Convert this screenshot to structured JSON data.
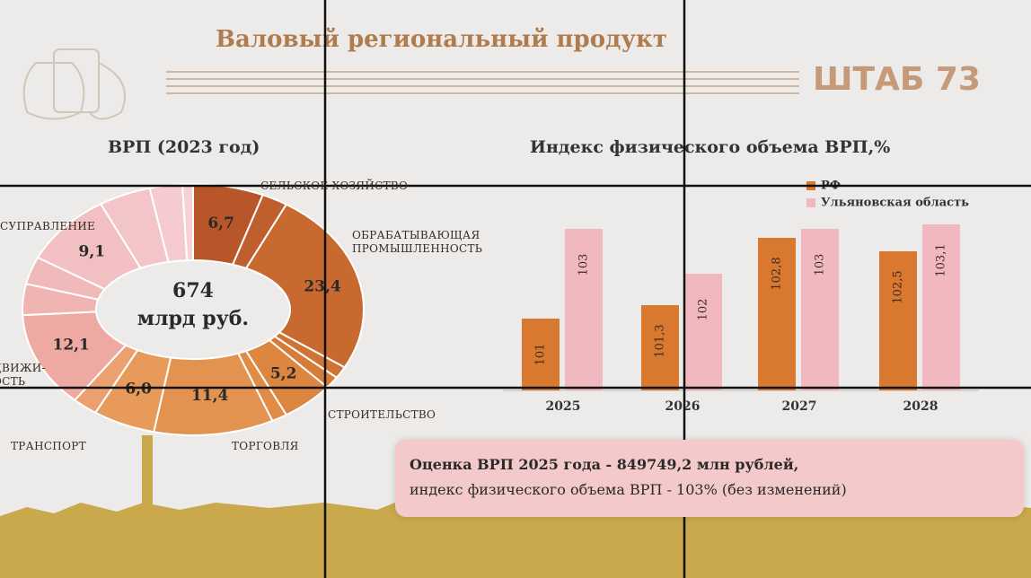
{
  "header": {
    "title": "Валовый региональный продукт",
    "brand": "ШТАБ 73"
  },
  "note": {
    "line1": "Оценка ВРП 2025 года - 849749,2 млн рублей,",
    "line2": "индекс физического объема ВРП - 103% (без изменений)"
  },
  "chart_data": [
    {
      "type": "donut",
      "title": "ВРП (2023 год)",
      "center_value": 674,
      "center_unit": "млрд руб.",
      "categories": [
        "СЕЛЬСКОЕ ХОЗЯЙСТВО",
        null,
        "ОБРАБАТЫВАЮЩАЯ\nПРОМЫШЛЕННОСТЬ",
        null,
        null,
        "СТРОИТЕЛЬСТВО",
        null,
        "ТОРГОВЛЯ",
        "ТРАНСПОРТ",
        null,
        "ДВИЖИ-\nОСТЬ",
        null,
        null,
        "СУПРАВЛЕНИЕ",
        null,
        null,
        null
      ],
      "values": [
        6.7,
        2.5,
        23.4,
        1.5,
        1.5,
        5.2,
        1.5,
        11.4,
        6.0,
        2.5,
        12.1,
        4.0,
        3.5,
        9.1,
        5.0,
        3.1,
        1.0
      ],
      "value_labels": [
        "6,7",
        null,
        "23,4",
        null,
        null,
        "5,2",
        null,
        "11,4",
        "6,0",
        null,
        "12,1",
        null,
        null,
        "9,1",
        null,
        null,
        null
      ],
      "colors": [
        "#b8562a",
        "#bf5f2e",
        "#c86a30",
        "#cf7434",
        "#d57c3a",
        "#dc8640",
        "#e08c45",
        "#e39350",
        "#e79a5a",
        "#eba070",
        "#eeaaa2",
        "#f0b4b2",
        "#f1baba",
        "#f2c0c2",
        "#f3c5c8",
        "#f5cbd0",
        "#f6d2d6"
      ]
    },
    {
      "type": "bar",
      "title": "Индекс физического объема ВРП,%",
      "categories": [
        "2025",
        "2026",
        "2027",
        "2028"
      ],
      "series": [
        {
          "name": "РФ",
          "color": "#d9782f",
          "values": [
            101,
            101.3,
            102.8,
            102.5
          ],
          "value_labels": [
            "101",
            "101,3",
            "102,8",
            "102,5"
          ]
        },
        {
          "name": "Ульяновская область",
          "color": "#f2b8bf",
          "values": [
            103,
            102,
            103,
            103.1
          ],
          "value_labels": [
            "103",
            "102",
            "103",
            "103,1"
          ]
        }
      ],
      "ylim": [
        99.4,
        104
      ]
    }
  ]
}
